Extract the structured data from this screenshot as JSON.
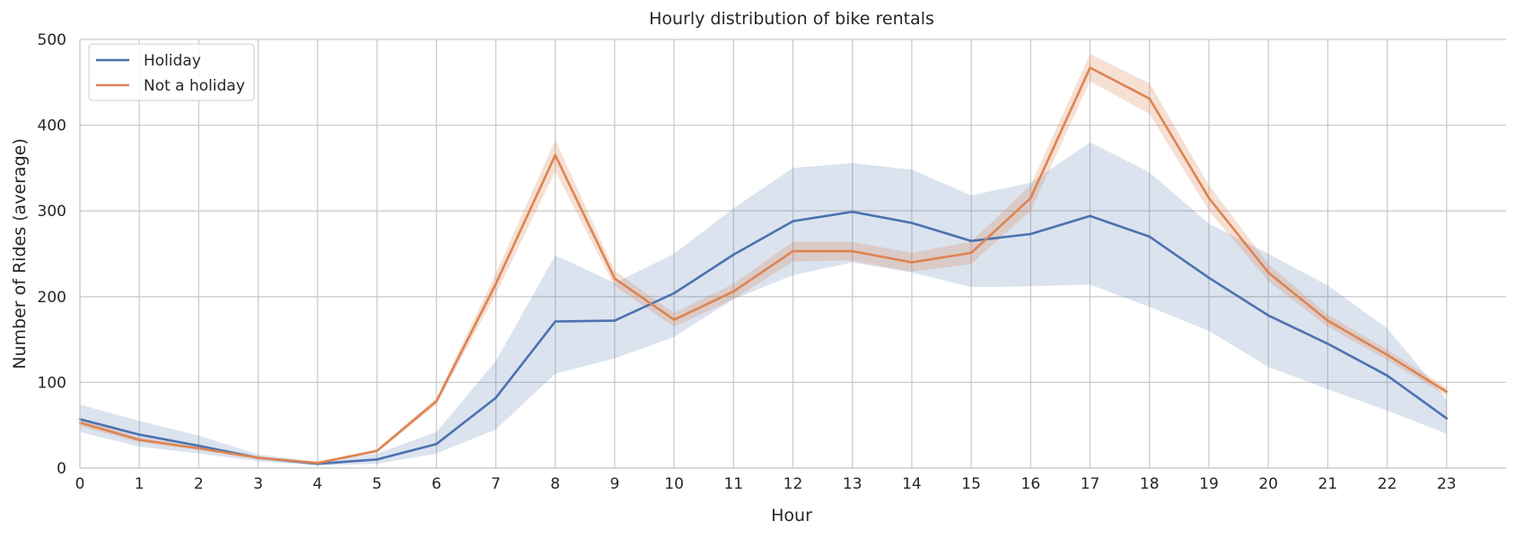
{
  "chart_data": {
    "type": "line",
    "title": "Hourly distribution of bike rentals",
    "xlabel": "Hour",
    "ylabel": "Number of Rides (average)",
    "xlim": [
      0,
      24
    ],
    "ylim": [
      0,
      500
    ],
    "x": [
      0,
      1,
      2,
      3,
      4,
      5,
      6,
      7,
      8,
      9,
      10,
      11,
      12,
      13,
      14,
      15,
      16,
      17,
      18,
      19,
      20,
      21,
      22,
      23
    ],
    "xticks": [
      "0",
      "1",
      "2",
      "3",
      "4",
      "5",
      "6",
      "7",
      "8",
      "9",
      "10",
      "11",
      "12",
      "13",
      "14",
      "15",
      "16",
      "17",
      "18",
      "19",
      "20",
      "21",
      "22",
      "23"
    ],
    "yticks": [
      "0",
      "100",
      "200",
      "300",
      "400",
      "500"
    ],
    "ytick_values": [
      0,
      100,
      200,
      300,
      400,
      500
    ],
    "grid": true,
    "legend_position": "top-left",
    "series": [
      {
        "name": "Holiday",
        "color": "#4c72b0",
        "values": [
          57,
          39,
          26,
          12,
          5,
          10,
          28,
          82,
          171,
          172,
          204,
          249,
          288,
          299,
          286,
          265,
          273,
          294,
          270,
          222,
          178,
          145,
          108,
          58
        ],
        "ci_lower": [
          42,
          25,
          17,
          8,
          3,
          5,
          17,
          45,
          110,
          128,
          153,
          197,
          225,
          240,
          228,
          211,
          212,
          214,
          188,
          160,
          118,
          92,
          67,
          40
        ],
        "ci_upper": [
          74,
          55,
          38,
          16,
          7,
          17,
          42,
          125,
          248,
          216,
          250,
          303,
          350,
          356,
          348,
          318,
          333,
          380,
          345,
          285,
          250,
          213,
          163,
          80
        ]
      },
      {
        "name": "Not a holiday",
        "color": "#dd8452",
        "values": [
          53,
          33,
          23,
          12,
          6,
          20,
          78,
          215,
          365,
          221,
          173,
          206,
          253,
          253,
          240,
          251,
          315,
          467,
          431,
          315,
          228,
          172,
          132,
          89
        ],
        "ci_lower": [
          49,
          30,
          21,
          10,
          5,
          18,
          74,
          203,
          346,
          212,
          165,
          197,
          241,
          242,
          229,
          238,
          300,
          451,
          413,
          300,
          218,
          165,
          126,
          84
        ],
        "ci_upper": [
          57,
          36,
          25,
          13,
          7,
          22,
          82,
          227,
          383,
          230,
          181,
          215,
          264,
          264,
          251,
          264,
          330,
          483,
          449,
          330,
          238,
          179,
          138,
          94
        ]
      }
    ]
  }
}
